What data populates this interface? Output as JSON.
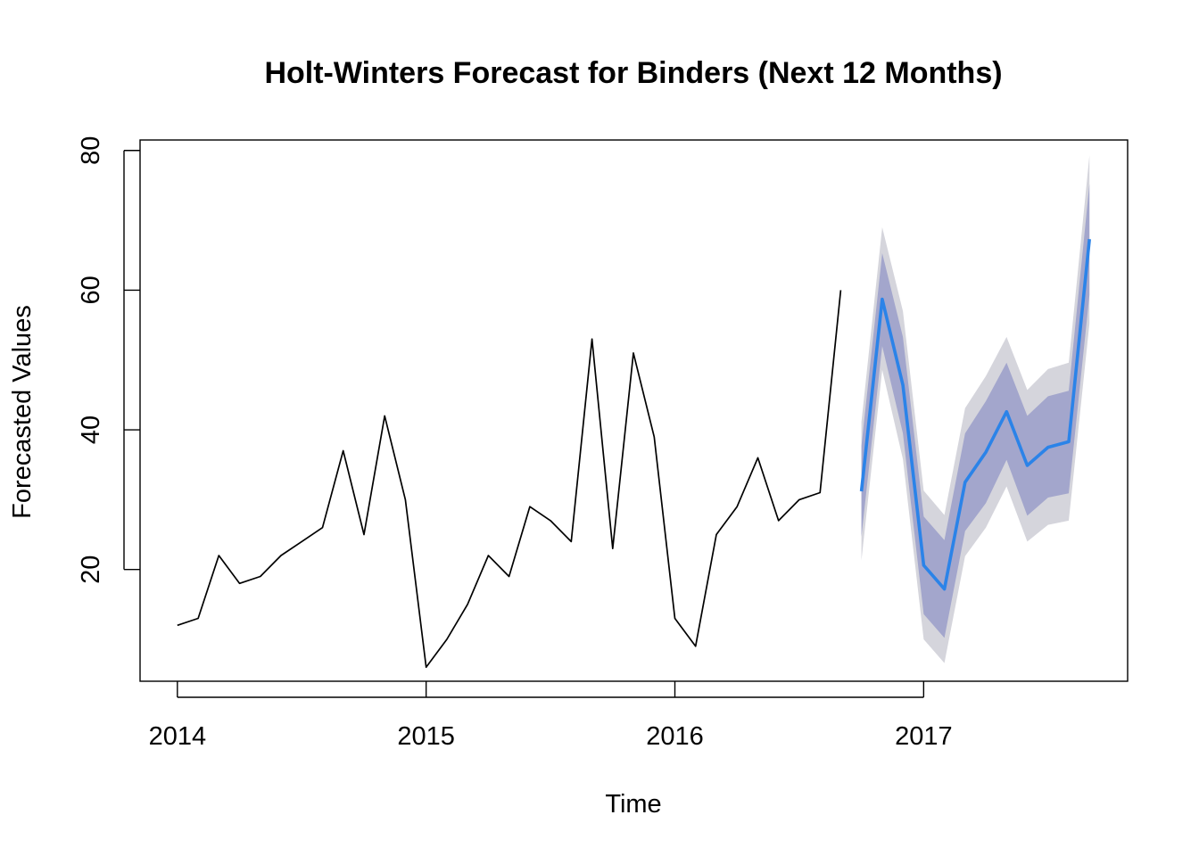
{
  "chart_data": {
    "type": "line",
    "title": "Holt-Winters Forecast for Binders (Next 12 Months)",
    "xlabel": "Time",
    "ylabel": "Forecasted Values",
    "xlim": [
      2013.85,
      2017.82
    ],
    "ylim": [
      4,
      81.5
    ],
    "x_ticks": [
      2014,
      2015,
      2016,
      2017
    ],
    "x_tick_labels": [
      "2014",
      "2015",
      "2016",
      "2017"
    ],
    "y_ticks": [
      20,
      40,
      60,
      80
    ],
    "y_tick_labels": [
      "20",
      "40",
      "60",
      "80"
    ],
    "grid": false,
    "legend": "none",
    "colors": {
      "history": "#000000",
      "forecast": "#2B83E8",
      "band80": "#A3A6CC",
      "band95": "#D5D5DC"
    },
    "series": [
      {
        "role": "observed",
        "start": "2014-01",
        "frequency": 12,
        "values": [
          12,
          13,
          22,
          18,
          19,
          22,
          24,
          26,
          37,
          25,
          42,
          30,
          6,
          10,
          15,
          22,
          19,
          29,
          27,
          24,
          53,
          23,
          51,
          39,
          13,
          9,
          25,
          29,
          36,
          27,
          30,
          31,
          60
        ]
      },
      {
        "role": "forecast",
        "start": "2016-10",
        "frequency": 12,
        "values": [
          31.2,
          58.7,
          46.4,
          20.6,
          17.2,
          32.5,
          36.8,
          42.6,
          34.9,
          37.5,
          38.3,
          67.3
        ],
        "lower80": [
          24.7,
          52.0,
          39.5,
          13.6,
          10.2,
          25.5,
          29.5,
          35.7,
          27.7,
          30.3,
          30.9,
          59.3
        ],
        "upper80": [
          37.7,
          65.3,
          53.3,
          27.6,
          24.2,
          39.5,
          44.1,
          49.6,
          42.0,
          44.8,
          45.6,
          75.2
        ],
        "lower95": [
          21.3,
          48.6,
          35.8,
          10.0,
          6.6,
          21.9,
          26.0,
          31.9,
          24.0,
          26.4,
          27.0,
          55.2
        ],
        "upper95": [
          41.1,
          69.0,
          57.0,
          31.3,
          27.8,
          43.1,
          47.7,
          53.3,
          45.7,
          48.7,
          49.6,
          79.3
        ]
      }
    ]
  }
}
